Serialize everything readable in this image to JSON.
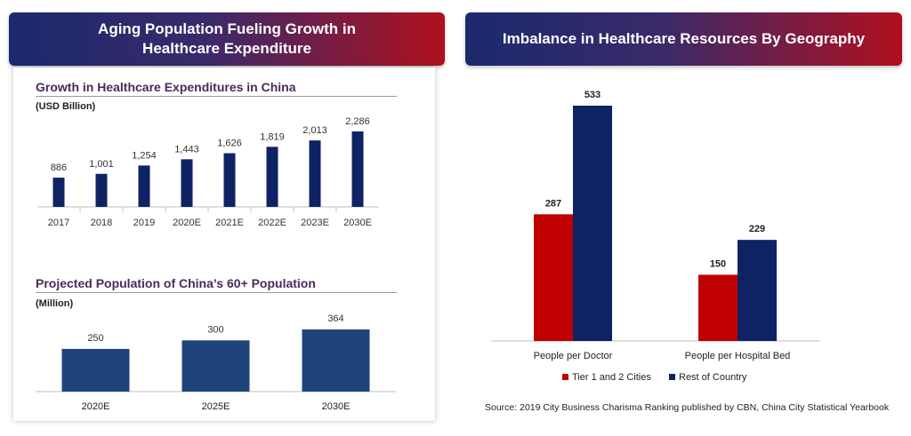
{
  "left_banner": {
    "line1": "Aging Population Fueling Growth in",
    "line2": "Healthcare Expenditure"
  },
  "right_banner": {
    "title": "Imbalance in Healthcare Resources By Geography"
  },
  "expenditure_section": {
    "title": "Growth in Healthcare Expenditures in China",
    "unit": "(USD Billion)"
  },
  "population_section": {
    "title": "Projected Population of China’s 60+ Population",
    "unit": "(Million)"
  },
  "source": "Source:  2019 City Business Charisma Ranking published by CBN, China City Statistical Yearbook",
  "colors": {
    "navy": "#0f2263",
    "pop_bar": "#1f4479",
    "red": "#c00000",
    "rest": "#0f2263"
  },
  "chart_data": [
    {
      "type": "bar",
      "title": "Growth in Healthcare Expenditures in China",
      "ylabel": "(USD Billion)",
      "categories": [
        "2017",
        "2018",
        "2019",
        "2020E",
        "2021E",
        "2022E",
        "2023E",
        "2030E"
      ],
      "values": [
        886,
        1001,
        1254,
        1443,
        1626,
        1819,
        2013,
        2286
      ],
      "value_labels": [
        "886",
        "1,001",
        "1,254",
        "1,443",
        "1,626",
        "1,819",
        "2,013",
        "2,286"
      ],
      "grid": false
    },
    {
      "type": "bar",
      "title": "Projected Population of China’s 60+ Population",
      "ylabel": "(Million)",
      "categories": [
        "2020E",
        "2025E",
        "2030E"
      ],
      "values": [
        250,
        300,
        364
      ],
      "value_labels": [
        "250",
        "300",
        "364"
      ],
      "grid": false
    },
    {
      "type": "bar",
      "title": "Imbalance in Healthcare Resources By Geography",
      "categories": [
        "People per Doctor",
        "People per Hospital Bed"
      ],
      "series": [
        {
          "name": "Tier 1 and 2 Cities",
          "values": [
            287,
            150
          ],
          "value_labels": [
            "287",
            "150"
          ],
          "color": "#c00000"
        },
        {
          "name": "Rest of Country",
          "values": [
            533,
            229
          ],
          "value_labels": [
            "533",
            "229"
          ],
          "color": "#0f2263"
        }
      ],
      "legend": "bottom",
      "grid": false
    }
  ]
}
